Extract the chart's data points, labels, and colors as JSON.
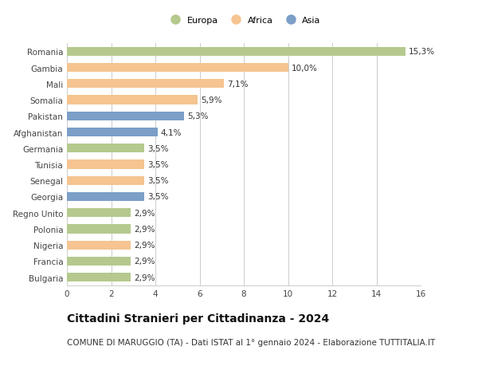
{
  "countries": [
    "Romania",
    "Gambia",
    "Mali",
    "Somalia",
    "Pakistan",
    "Afghanistan",
    "Germania",
    "Tunisia",
    "Senegal",
    "Georgia",
    "Regno Unito",
    "Polonia",
    "Nigeria",
    "Francia",
    "Bulgaria"
  ],
  "values": [
    15.3,
    10.0,
    7.1,
    5.9,
    5.3,
    4.1,
    3.5,
    3.5,
    3.5,
    3.5,
    2.9,
    2.9,
    2.9,
    2.9,
    2.9
  ],
  "labels": [
    "15,3%",
    "10,0%",
    "7,1%",
    "5,9%",
    "5,3%",
    "4,1%",
    "3,5%",
    "3,5%",
    "3,5%",
    "3,5%",
    "2,9%",
    "2,9%",
    "2,9%",
    "2,9%",
    "2,9%"
  ],
  "continents": [
    "Europa",
    "Africa",
    "Africa",
    "Africa",
    "Asia",
    "Asia",
    "Europa",
    "Africa",
    "Africa",
    "Asia",
    "Europa",
    "Europa",
    "Africa",
    "Europa",
    "Europa"
  ],
  "colors": {
    "Europa": "#b5c98e",
    "Africa": "#f5c490",
    "Asia": "#7b9fc7"
  },
  "title1": "Cittadini Stranieri per Cittadinanza - 2024",
  "title2": "COMUNE DI MARUGGIO (TA) - Dati ISTAT al 1° gennaio 2024 - Elaborazione TUTTITALIA.IT",
  "xlim": [
    0,
    16
  ],
  "xticks": [
    0,
    2,
    4,
    6,
    8,
    10,
    12,
    14,
    16
  ],
  "background_color": "#ffffff",
  "grid_color": "#cccccc",
  "bar_height": 0.55,
  "label_fontsize": 7.5,
  "tick_fontsize": 7.5,
  "title1_fontsize": 10,
  "title2_fontsize": 7.5
}
